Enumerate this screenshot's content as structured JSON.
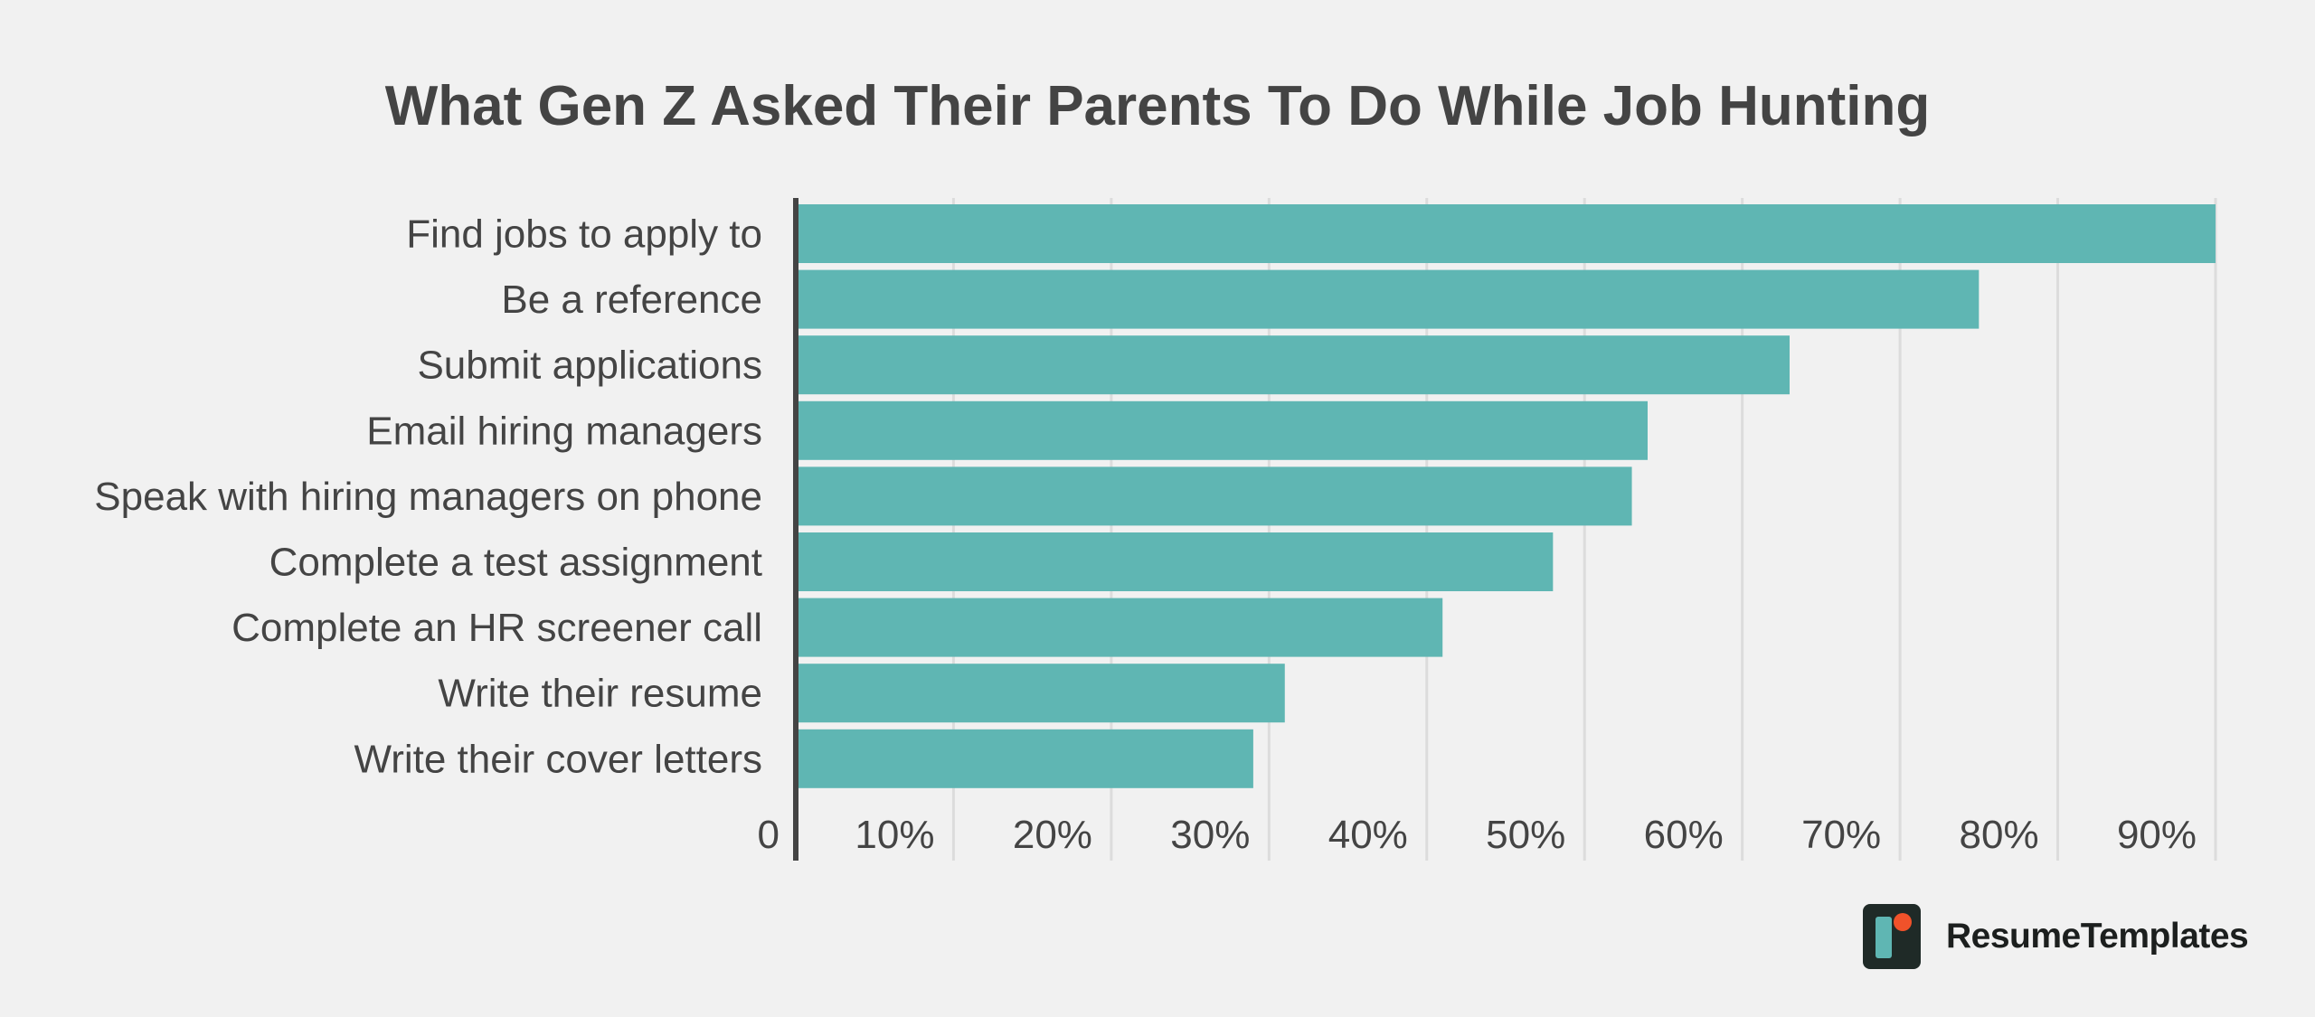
{
  "chart_data": {
    "type": "bar",
    "orientation": "horizontal",
    "title": "What Gen Z Asked Their Parents To Do While Job Hunting",
    "categories": [
      "Find jobs to apply to",
      "Be a reference",
      "Submit applications",
      "Email hiring managers",
      "Speak with hiring managers on phone",
      "Complete a test assignment",
      "Complete an HR screener call",
      "Write their resume",
      "Write their cover letters"
    ],
    "values": [
      90,
      75,
      63,
      54,
      53,
      48,
      41,
      31,
      29
    ],
    "xlim": [
      0,
      90
    ],
    "x_ticks": [
      "0",
      "10%",
      "20%",
      "30%",
      "40%",
      "50%",
      "60%",
      "70%",
      "80%",
      "90%"
    ],
    "grid": true,
    "legend": "none",
    "bar_color": "#5fb6b3"
  },
  "brand": {
    "name": "ResumeTemplates",
    "logo_icon": "resumetemplates-logo-icon",
    "logo_colors": {
      "background": "#1f2a27",
      "accent_teal": "#5fb6b3",
      "accent_orange": "#f0522a"
    }
  }
}
